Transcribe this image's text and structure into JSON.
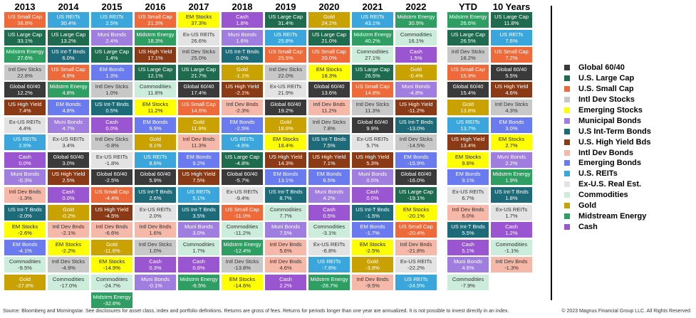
{
  "chart_data": {
    "type": "table",
    "columns": [
      "2013",
      "2014",
      "2015",
      "2016",
      "2017",
      "2018",
      "2019",
      "2020",
      "2021",
      "2022",
      "YTD",
      "10 Years"
    ],
    "assets": {
      "global6040": {
        "label": "Global 60/40",
        "color": "#3a3a3a",
        "text": "#ffffff"
      },
      "uslarge": {
        "label": "U.S. Large Cap",
        "color": "#1f6b4f",
        "text": "#ffffff"
      },
      "ussmall": {
        "label": "U.S. Small Cap",
        "color": "#ef6a3a",
        "text": "#ffffff"
      },
      "intldev": {
        "label": "Intl Dev Stocks",
        "color": "#c8c8c8",
        "text": "#333333"
      },
      "em": {
        "label": "Emerging Stocks",
        "color": "#ffff00",
        "text": "#222222"
      },
      "muni": {
        "label": "Municipal Bonds",
        "color": "#a07ee0",
        "text": "#ffffff"
      },
      "usint": {
        "label": "U.S Int-Term Bonds",
        "color": "#1d6b78",
        "text": "#ffffff"
      },
      "ushy": {
        "label": "U.S. High Yield Bds",
        "color": "#8a3a14",
        "text": "#ffffff"
      },
      "intlbonds": {
        "label": "Intl Dev Bonds",
        "color": "#f6b8a8",
        "text": "#333333"
      },
      "embonds": {
        "label": "Emerging Bonds",
        "color": "#6a7bf0",
        "text": "#ffffff"
      },
      "usreits": {
        "label": "U.S. REITs",
        "color": "#3aa6dc",
        "text": "#ffffff"
      },
      "exusreits": {
        "label": "Ex-U.S. Real Est.",
        "color": "#e3e3e3",
        "text": "#333333"
      },
      "commod": {
        "label": "Commodities",
        "color": "#ccecdc",
        "text": "#333333"
      },
      "gold": {
        "label": "Gold",
        "color": "#c9a200",
        "text": "#ffffff"
      },
      "midstream": {
        "label": "Midstream Energy",
        "color": "#2e9e62",
        "text": "#ffffff"
      },
      "cash": {
        "label": "Cash",
        "color": "#9a55d0",
        "text": "#ffffff"
      }
    },
    "legend_order": [
      "global6040",
      "uslarge",
      "ussmall",
      "intldev",
      "em",
      "muni",
      "usint",
      "ushy",
      "intlbonds",
      "embonds",
      "usreits",
      "exusreits",
      "commod",
      "gold",
      "midstream",
      "cash"
    ],
    "grid": [
      [
        [
          "ussmall",
          "US Small Cap",
          "38.8%"
        ],
        [
          "uslarge",
          "US Large Cap",
          "33.1%"
        ],
        [
          "midstream",
          "Midstrm Energy",
          "27.6%"
        ],
        [
          "intldev",
          "Intl Dev Stcks",
          "22.8%"
        ],
        [
          "global6040",
          "Global 60/40",
          "12.2%"
        ],
        [
          "ushy",
          "US High Yield",
          "7.4%"
        ],
        [
          "exusreits",
          "Ex-US REITs",
          "4.4%"
        ],
        [
          "usreits",
          "US REITs",
          "2.5%"
        ],
        [
          "cash",
          "Cash",
          "0.0%"
        ],
        [
          "muni",
          "Muni Bonds",
          "-0.3%"
        ],
        [
          "intlbonds",
          "Intl Dev Bnds",
          "-1.3%"
        ],
        [
          "usint",
          "US Int-T Bnds",
          "-2.0%"
        ],
        [
          "em",
          "EM Stocks",
          "-2.6%"
        ],
        [
          "embonds",
          "EM Bonds",
          "-4.1%"
        ],
        [
          "commod",
          "Commodities",
          "-9.5%"
        ],
        [
          "gold",
          "Gold",
          "-27.8%"
        ]
      ],
      [
        [
          "usreits",
          "US REITs",
          "30.4%"
        ],
        [
          "uslarge",
          "US Large Cap",
          "13.2%"
        ],
        [
          "usint",
          "US Int-T Bnds",
          "6.0%"
        ],
        [
          "ussmall",
          "US Small Cap",
          "4.9%"
        ],
        [
          "midstream",
          "Midstrm Energy",
          "4.8%"
        ],
        [
          "embonds",
          "EM Bonds",
          "4.8%"
        ],
        [
          "muni",
          "Muni Bonds",
          "4.7%"
        ],
        [
          "exusreits",
          "Ex-US REITs",
          "3.4%"
        ],
        [
          "global6040",
          "Global 60/40",
          "3.0%"
        ],
        [
          "ushy",
          "US High Yield",
          "2.5%"
        ],
        [
          "cash",
          "Cash",
          "0.0%"
        ],
        [
          "gold",
          "Gold",
          "-0.2%"
        ],
        [
          "intlbonds",
          "Intl Dev Bnds",
          "-2.1%"
        ],
        [
          "em",
          "EM Stocks",
          "-2.2%"
        ],
        [
          "intldev",
          "Intl Dev Stcks",
          "-4.9%"
        ],
        [
          "commod",
          "Commodities",
          "-17.0%"
        ]
      ],
      [
        [
          "usreits",
          "US REITs",
          "2.5%"
        ],
        [
          "muni",
          "Muni Bonds",
          "2.4%"
        ],
        [
          "uslarge",
          "US Large Cap",
          "1.4%"
        ],
        [
          "embonds",
          "EM Bonds",
          "1.3%"
        ],
        [
          "intldev",
          "Intl Dev Stcks",
          "1.0%"
        ],
        [
          "usint",
          "US Int-T Bnds",
          "0.5%"
        ],
        [
          "cash",
          "Cash",
          "0.0%"
        ],
        [
          "intldev",
          "Intl Dev Stcks",
          "-0.8%"
        ],
        [
          "exusreits",
          "Ex-US REITs",
          "-1.8%"
        ],
        [
          "global6040",
          "Global 60/40",
          "-2.5%"
        ],
        [
          "ussmall",
          "US Small Cap",
          "-4.4%"
        ],
        [
          "ushy",
          "US High Yield",
          "-4.5%"
        ],
        [
          "intlbonds",
          "Intl Dev Bnds",
          "-6.6%"
        ],
        [
          "gold",
          "Gold",
          "-11.6%"
        ],
        [
          "em",
          "EM Stocks",
          "-14.9%"
        ],
        [
          "commod",
          "Commodities",
          "-24.7%"
        ],
        [
          "midstream",
          "Midstrm Energy",
          "-32.6%"
        ]
      ],
      [
        [
          "ussmall",
          "US Small Cap",
          "21.3%"
        ],
        [
          "midstream",
          "Midstrm Energy",
          "18.3%"
        ],
        [
          "ushy",
          "US High Yield",
          "17.1%"
        ],
        [
          "uslarge",
          "US Large Cap",
          "12.1%"
        ],
        [
          "commod",
          "Commodities",
          "11.8%"
        ],
        [
          "em",
          "EM Stocks",
          "11.2%"
        ],
        [
          "embonds",
          "EM Bonds",
          "9.9%"
        ],
        [
          "gold",
          "Gold",
          "9.1%"
        ],
        [
          "usreits",
          "US REITs",
          "8.6%"
        ],
        [
          "global6040",
          "Global 60/40",
          "5.9%"
        ],
        [
          "usint",
          "US Int-T Bnds",
          "2.6%"
        ],
        [
          "exusreits",
          "Ex-US REITs",
          "2.0%"
        ],
        [
          "intlbonds",
          "Intl Dev Bnds",
          "1.6%"
        ],
        [
          "intldev",
          "Intl Dev Stcks",
          "1.0%"
        ],
        [
          "cash",
          "Cash",
          "0.3%"
        ],
        [
          "muni",
          "Muni Bonds",
          "-0.1%"
        ]
      ],
      [
        [
          "em",
          "EM Stocks",
          "37.3%"
        ],
        [
          "exusreits",
          "Ex-US REITs",
          "26.6%"
        ],
        [
          "intldev",
          "Intl Dev Stcks",
          "25.0%"
        ],
        [
          "uslarge",
          "US Large Cap",
          "21.7%"
        ],
        [
          "global6040",
          "Global 60/40",
          "17.4%"
        ],
        [
          "ussmall",
          "US Small Cap",
          "14.6%"
        ],
        [
          "gold",
          "Gold",
          "11.9%"
        ],
        [
          "intlbonds",
          "Intl Dev Bnds",
          "11.3%"
        ],
        [
          "embonds",
          "EM Bonds",
          "9.2%"
        ],
        [
          "ushy",
          "US High Yield",
          "7.5%"
        ],
        [
          "usreits",
          "US REITs",
          "5.1%"
        ],
        [
          "usint",
          "US Int-T Bnds",
          "3.5%"
        ],
        [
          "muni",
          "Muni Bonds",
          "3.0%"
        ],
        [
          "commod",
          "Commodities",
          "1.7%"
        ],
        [
          "cash",
          "Cash",
          "0.8%"
        ],
        [
          "midstream",
          "Midstrm Energy",
          "-6.5%"
        ]
      ],
      [
        [
          "cash",
          "Cash",
          "1.8%"
        ],
        [
          "muni",
          "Muni Bonds",
          "1.6%"
        ],
        [
          "usint",
          "US Int-T Bnds",
          "0.0%"
        ],
        [
          "gold",
          "Gold",
          "-1.1%"
        ],
        [
          "ushy",
          "US High Yield",
          "-2.1%"
        ],
        [
          "intlbonds",
          "Intl Dev Bnds",
          "-2.3%"
        ],
        [
          "embonds",
          "EM Bonds",
          "-2.5%"
        ],
        [
          "usreits",
          "US REITs",
          "-4.6%"
        ],
        [
          "uslarge",
          "US Large Cap",
          "-4.8%"
        ],
        [
          "global6040",
          "Global 60/40",
          "-5.7%"
        ],
        [
          "exusreits",
          "Ex-US REITs",
          "-9.4%"
        ],
        [
          "ussmall",
          "US Small Cap",
          "-11.0%"
        ],
        [
          "commod",
          "Commodities",
          "-11.2%"
        ],
        [
          "midstream",
          "Midstrm Energy",
          "-12.4%"
        ],
        [
          "intldev",
          "Intl Dev Stcks",
          "-13.8%"
        ],
        [
          "em",
          "EM Stocks",
          "-14.6%"
        ]
      ],
      [
        [
          "uslarge",
          "US Large Cap",
          "31.4%"
        ],
        [
          "usreits",
          "US REITs",
          "25.8%"
        ],
        [
          "ussmall",
          "US Small Cap",
          "25.5%"
        ],
        [
          "intldev",
          "Intl Dev Stcks",
          "22.0%"
        ],
        [
          "exusreits",
          "Ex-US REITs",
          "21.9%"
        ],
        [
          "global6040",
          "Global 60/40",
          "19.2%"
        ],
        [
          "gold",
          "Gold",
          "18.8%"
        ],
        [
          "em",
          "EM Stocks",
          "18.4%"
        ],
        [
          "ushy",
          "US High Yield",
          "14.3%"
        ],
        [
          "embonds",
          "EM Bonds",
          "13.1%"
        ],
        [
          "usint",
          "US Int-T Bnds",
          "8.7%"
        ],
        [
          "commod",
          "Commodities",
          "7.7%"
        ],
        [
          "muni",
          "Muni Bonds",
          "7.5%"
        ],
        [
          "intlbonds",
          "Intl Dev Bnds",
          "5.6%"
        ],
        [
          "intlbonds",
          "Intl Dev Bnds",
          "4.6%"
        ],
        [
          "cash",
          "Cash",
          "2.2%"
        ]
      ],
      [
        [
          "gold",
          "Gold",
          "24.2%"
        ],
        [
          "uslarge",
          "US Large Cap",
          "21.0%"
        ],
        [
          "ussmall",
          "US Small Cap",
          "20.0%"
        ],
        [
          "em",
          "EM Stocks",
          "18.3%"
        ],
        [
          "global6040",
          "Global 60/40",
          "13.6%"
        ],
        [
          "intlbonds",
          "Intl Dev Bnds",
          "11.2%"
        ],
        [
          "intldev",
          "Intl Dev Stcks",
          "7.8%"
        ],
        [
          "usint",
          "US Int-T Bnds",
          "7.5%"
        ],
        [
          "ushy",
          "US High Yield",
          "7.1%"
        ],
        [
          "embonds",
          "EM Bonds",
          "6.5%"
        ],
        [
          "muni",
          "Muni Bonds",
          "4.2%"
        ],
        [
          "cash",
          "Cash",
          "0.5%"
        ],
        [
          "commod",
          "Commodities",
          "-3.1%"
        ],
        [
          "exusreits",
          "Ex-US REITs",
          "-6.8%"
        ],
        [
          "usreits",
          "US REITs",
          "-7.6%"
        ],
        [
          "midstream",
          "Midstrm Energy",
          "-28.7%"
        ]
      ],
      [
        [
          "usreits",
          "US REITs",
          "43.1%"
        ],
        [
          "midstream",
          "Midstrm Energy",
          "40.2%"
        ],
        [
          "commod",
          "Commodities",
          "27.1%"
        ],
        [
          "uslarge",
          "US Large Cap",
          "26.5%"
        ],
        [
          "ussmall",
          "US Small Cap",
          "14.8%"
        ],
        [
          "intldev",
          "Intl Dev Stcks",
          "11.3%"
        ],
        [
          "global6040",
          "Global 60/40",
          "9.9%"
        ],
        [
          "exusreits",
          "Ex-US REITs",
          "5.7%"
        ],
        [
          "ushy",
          "US High Yield",
          "5.3%"
        ],
        [
          "muni",
          "Muni Bonds",
          "0.5%"
        ],
        [
          "cash",
          "Cash",
          "0.0%"
        ],
        [
          "usint",
          "US Int-T Bnds",
          "-1.5%"
        ],
        [
          "embonds",
          "EM Bonds",
          "-1.7%"
        ],
        [
          "em",
          "EM Stocks",
          "-2.5%"
        ],
        [
          "gold",
          "Gold",
          "-3.8%"
        ],
        [
          "intlbonds",
          "Intl Dev Bnds",
          "-9.5%"
        ]
      ],
      [
        [
          "midstream",
          "Midstrm Energy",
          "30.9%"
        ],
        [
          "commod",
          "Commodities",
          "16.1%"
        ],
        [
          "cash",
          "Cash",
          "1.5%"
        ],
        [
          "gold",
          "Gold",
          "-0.4%"
        ],
        [
          "muni",
          "Muni Bonds",
          "-4.8%"
        ],
        [
          "ushy",
          "US High Yield",
          "-11.2%"
        ],
        [
          "usint",
          "US Int-T Bnds",
          "-13.0%"
        ],
        [
          "intldev",
          "Intl Dev Stcks",
          "-14.5%"
        ],
        [
          "embonds",
          "EM Bonds",
          "-15.9%"
        ],
        [
          "global6040",
          "Global 60/40",
          "-16.0%"
        ],
        [
          "uslarge",
          "US Large Cap",
          "-19.1%"
        ],
        [
          "em",
          "EM Stocks",
          "-20.1%"
        ],
        [
          "ussmall",
          "US Small Cap",
          "-20.4%"
        ],
        [
          "intlbonds",
          "Intl Dev Bnds",
          "-21.8%"
        ],
        [
          "exusreits",
          "Ex-US REITs",
          "-22.2%"
        ],
        [
          "usreits",
          "US REITs",
          "-24.5%"
        ]
      ],
      [
        [
          "midstream",
          "Midstrm Energy",
          "26.6%"
        ],
        [
          "uslarge",
          "US Large Cap",
          "26.5%"
        ],
        [
          "intldev",
          "Intl Dev Stcks",
          "18.2%"
        ],
        [
          "ussmall",
          "US Small Cap",
          "16.9%"
        ],
        [
          "global6040",
          "Global 60/40",
          "15.4%"
        ],
        [
          "gold",
          "Gold",
          "13.8%"
        ],
        [
          "usreits",
          "US REITs",
          "13.7%"
        ],
        [
          "ushy",
          "US High Yield",
          "13.4%"
        ],
        [
          "em",
          "EM Stocks",
          "9.8%"
        ],
        [
          "embonds",
          "EM Bonds",
          "9.1%"
        ],
        [
          "exusreits",
          "Ex-US REITs",
          "6.7%"
        ],
        [
          "intlbonds",
          "Intl Dev Bnds",
          "6.0%"
        ],
        [
          "usint",
          "US Int-T Bnds",
          "5.5%"
        ],
        [
          "cash",
          "Cash",
          "5.1%"
        ],
        [
          "muni",
          "Muni Bonds",
          "4.6%"
        ],
        [
          "commod",
          "Commodities",
          "-7.9%"
        ]
      ],
      [
        [
          "uslarge",
          "US Large Cap",
          "11.8%"
        ],
        [
          "usreits",
          "US REITs",
          "7.6%"
        ],
        [
          "ussmall",
          "US Small Cap",
          "7.2%"
        ],
        [
          "global6040",
          "Global 60/40",
          "5.5%"
        ],
        [
          "ushy",
          "US High Yield",
          "4.6%"
        ],
        [
          "intldev",
          "Intl Dev Stcks",
          "4.3%"
        ],
        [
          "embonds",
          "EM Bonds",
          "3.0%"
        ],
        [
          "em",
          "EM Stocks",
          "2.7%"
        ],
        [
          "muni",
          "Muni Bonds",
          "2.2%"
        ],
        [
          "midstream",
          "Midstrm Energy",
          "1.9%"
        ],
        [
          "usint",
          "US Int-T Bnds",
          "1.8%"
        ],
        [
          "exusreits",
          "Ex-US REITs",
          "1.7%"
        ],
        [
          "cash",
          "Cash",
          "1.2%"
        ],
        [
          "commod",
          "Commodities",
          "-1.1%"
        ],
        [
          "intlbonds",
          "Intl Dev Bnds",
          "-1.3%"
        ]
      ]
    ]
  },
  "footer": {
    "source": "Source: Bloomberg and Morningstar. See disclosures for asset class, index and portfolio definitions. Returns are gross of fees. Returns for periods longer than one year are annualized. It is not possible to invest directly in an index.",
    "copyright": "© 2023 Magnus Financial Group LLC. All Rights Reserved"
  }
}
